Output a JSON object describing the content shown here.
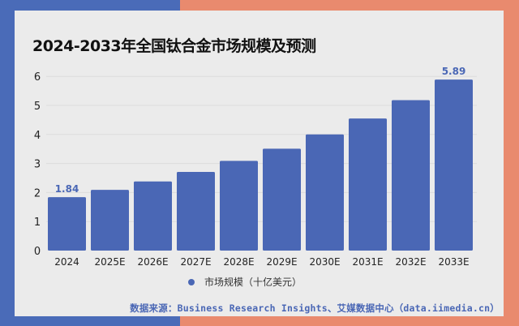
{
  "colors": {
    "bar": "#4a67b5",
    "left_bg": "#4a6bb8",
    "right_bg": "#e98a6e",
    "panel": "#ebebeb"
  },
  "chart_data": {
    "type": "bar",
    "title": "2024-2033年全国钛合金市场规模及预测",
    "categories": [
      "2024",
      "2025E",
      "2026E",
      "2027E",
      "2028E",
      "2029E",
      "2030E",
      "2031E",
      "2032E",
      "2033E"
    ],
    "series": [
      {
        "name": "市场规模（十亿美元）",
        "values": [
          1.84,
          2.09,
          2.38,
          2.71,
          3.09,
          3.51,
          4.0,
          4.55,
          5.18,
          5.89
        ]
      }
    ],
    "data_labels": {
      "0": "1.84",
      "9": "5.89"
    },
    "ylim": [
      0,
      6
    ],
    "yticks": [
      "0",
      "1",
      "2",
      "3",
      "4",
      "5",
      "6"
    ],
    "grid": true,
    "legend": "bottom"
  },
  "source": "数据来源：Business Research Insights、艾媒数据中心（data.iimedia.cn）"
}
